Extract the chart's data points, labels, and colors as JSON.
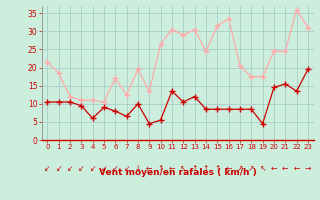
{
  "x": [
    0,
    1,
    2,
    3,
    4,
    5,
    6,
    7,
    8,
    9,
    10,
    11,
    12,
    13,
    14,
    15,
    16,
    17,
    18,
    19,
    20,
    21,
    22,
    23
  ],
  "wind_avg": [
    10.5,
    10.5,
    10.5,
    9.5,
    6,
    9,
    8,
    6.5,
    10,
    4.5,
    5.5,
    13.5,
    10.5,
    12,
    8.5,
    8.5,
    8.5,
    8.5,
    8.5,
    4.5,
    14.5,
    15.5,
    13.5,
    19.5
  ],
  "wind_gust": [
    21.5,
    18.5,
    12,
    11,
    11,
    10.5,
    17,
    12.5,
    19.5,
    13.5,
    26.5,
    30.5,
    29,
    30.5,
    24.5,
    31.5,
    33.5,
    20.5,
    17.5,
    17.5,
    24.5,
    24.5,
    36,
    31
  ],
  "avg_color": "#cc0000",
  "gust_color": "#ffaaaa",
  "bg_color": "#cceedd",
  "grid_color": "#aacccc",
  "xlabel": "Vent moyen/en rafales ( km/h )",
  "xlabel_color": "#cc0000",
  "tick_color": "#cc0000",
  "ylim": [
    0,
    37
  ],
  "yticks": [
    0,
    5,
    10,
    15,
    20,
    25,
    30,
    35
  ],
  "arrow_symbols": [
    "↙",
    "↙",
    "↙",
    "↙",
    "↙",
    "↙",
    "↙",
    "↙",
    "↓",
    "←",
    "↑",
    "←",
    "↖",
    "↑",
    "↑",
    "↑",
    "←",
    "↗",
    "↗",
    "↖",
    "←",
    "←",
    "←",
    "→"
  ]
}
